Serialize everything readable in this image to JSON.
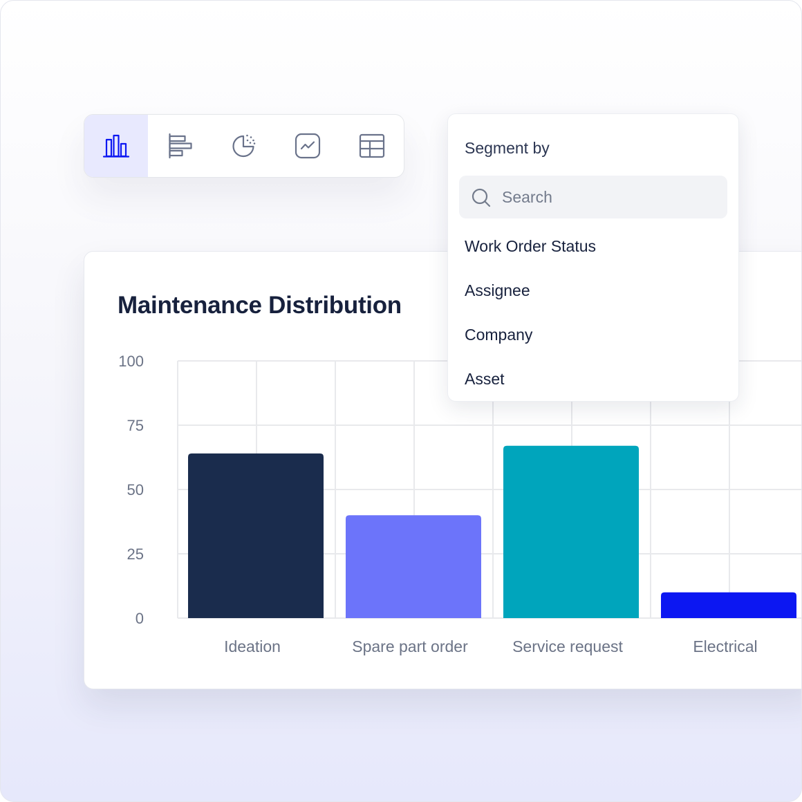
{
  "toolbar": {
    "buttons": [
      {
        "icon": "vertical-bar-chart-icon",
        "active": true
      },
      {
        "icon": "horizontal-bar-chart-icon",
        "active": false
      },
      {
        "icon": "pie-chart-icon",
        "active": false
      },
      {
        "icon": "line-chart-icon",
        "active": false
      },
      {
        "icon": "table-icon",
        "active": false
      }
    ]
  },
  "segment_menu": {
    "heading": "Segment by",
    "search_placeholder": "Search",
    "options": [
      "Work Order Status",
      "Assignee",
      "Company",
      "Asset"
    ]
  },
  "colors": {
    "accent": "#0c17f2",
    "active_tab_bg": "#e8e9fe",
    "title": "#17213d"
  },
  "chart_data": {
    "type": "bar",
    "title": "Maintenance Distribution",
    "xlabel": "",
    "ylabel": "",
    "categories": [
      "Ideation",
      "Spare part order",
      "Service request",
      "Electrical"
    ],
    "values": [
      64,
      40,
      67,
      10
    ],
    "colors": [
      "#1a2c4d",
      "#6c74fa",
      "#00a5bc",
      "#0c17f2"
    ],
    "yticks": [
      0,
      25,
      50,
      75,
      100
    ],
    "ylim": [
      0,
      100
    ],
    "grid": true,
    "legend": "none"
  }
}
